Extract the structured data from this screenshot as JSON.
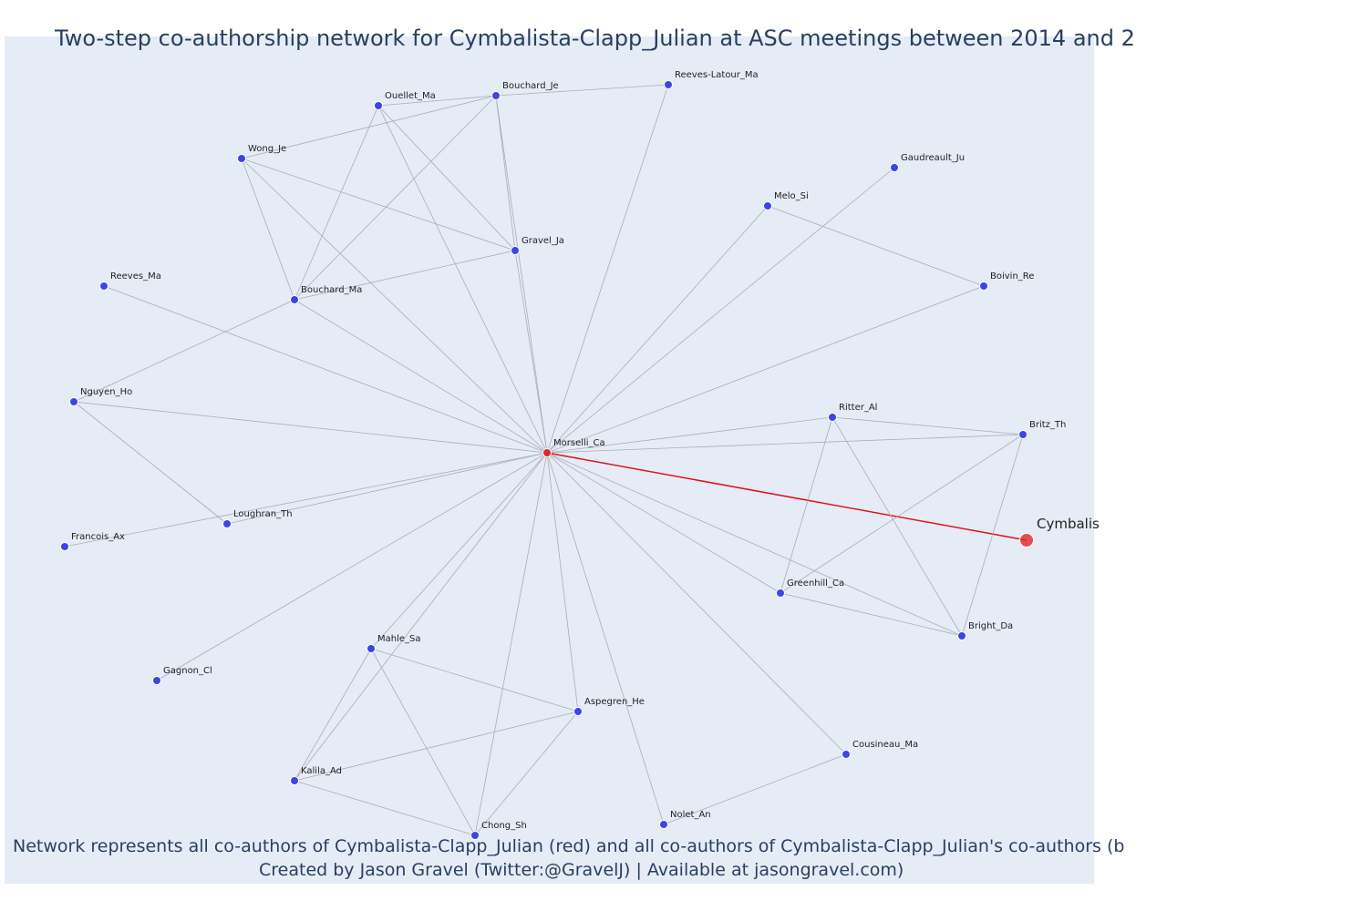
{
  "title": "Two-step co-authorship network for Cymbalista-Clapp_Julian at ASC meetings between 2014 and 2",
  "caption_line1": "Network represents all co-authors of Cymbalista-Clapp_Julian (red) and all co-authors of Cymbalista-Clapp_Julian's co-authors (b",
  "caption_line2": "Created by Jason Gravel (Twitter:@GravelJ) | Available at jasongravel.com)",
  "colors": {
    "background": "#e5ecf6",
    "node_blue": "#3d45e6",
    "node_red": "#e0282b",
    "edge_gray": "#a9acb8",
    "edge_red": "#e0141a",
    "text": "#2a3f5f"
  },
  "nodes": [
    {
      "id": "Cymbalista",
      "label": "Cymbalis",
      "type": "focal"
    },
    {
      "id": "Morselli_Ca",
      "label": "Morselli_Ca",
      "type": "coauthor"
    },
    {
      "id": "Ouellet_Ma",
      "label": "Ouellet_Ma",
      "type": "second"
    },
    {
      "id": "Bouchard_Je",
      "label": "Bouchard_Je",
      "type": "second"
    },
    {
      "id": "Reeves-Latour_Ma",
      "label": "Reeves-Latour_Ma",
      "type": "second"
    },
    {
      "id": "Wong_Je",
      "label": "Wong_Je",
      "type": "second"
    },
    {
      "id": "Gaudreault_Ju",
      "label": "Gaudreault_Ju",
      "type": "second"
    },
    {
      "id": "Melo_Si",
      "label": "Melo_Si",
      "type": "second"
    },
    {
      "id": "Gravel_Ja",
      "label": "Gravel_Ja",
      "type": "second"
    },
    {
      "id": "Reeves_Ma",
      "label": "Reeves_Ma",
      "type": "second"
    },
    {
      "id": "Bouchard_Ma",
      "label": "Bouchard_Ma",
      "type": "second"
    },
    {
      "id": "Boivin_Re",
      "label": "Boivin_Re",
      "type": "second"
    },
    {
      "id": "Nguyen_Ho",
      "label": "Nguyen_Ho",
      "type": "second"
    },
    {
      "id": "Ritter_Al",
      "label": "Ritter_Al",
      "type": "second"
    },
    {
      "id": "Britz_Th",
      "label": "Britz_Th",
      "type": "second"
    },
    {
      "id": "Loughran_Th",
      "label": "Loughran_Th",
      "type": "second"
    },
    {
      "id": "Francois_Ax",
      "label": "Francois_Ax",
      "type": "second"
    },
    {
      "id": "Greenhill_Ca",
      "label": "Greenhill_Ca",
      "type": "second"
    },
    {
      "id": "Bright_Da",
      "label": "Bright_Da",
      "type": "second"
    },
    {
      "id": "Mahle_Sa",
      "label": "Mahle_Sa",
      "type": "second"
    },
    {
      "id": "Gagnon_Cl",
      "label": "Gagnon_Cl",
      "type": "second"
    },
    {
      "id": "Aspegren_He",
      "label": "Aspegren_He",
      "type": "second"
    },
    {
      "id": "Cousineau_Ma",
      "label": "Cousineau_Ma",
      "type": "second"
    },
    {
      "id": "Kalila_Ad",
      "label": "Kalila_Ad",
      "type": "second"
    },
    {
      "id": "Chong_Sh",
      "label": "Chong_Sh",
      "type": "second"
    },
    {
      "id": "Nolet_An",
      "label": "Nolet_An",
      "type": "second"
    }
  ],
  "edges": [
    [
      "Morselli_Ca",
      "Cymbalista"
    ],
    [
      "Morselli_Ca",
      "Ouellet_Ma"
    ],
    [
      "Morselli_Ca",
      "Bouchard_Je"
    ],
    [
      "Morselli_Ca",
      "Reeves-Latour_Ma"
    ],
    [
      "Morselli_Ca",
      "Wong_Je"
    ],
    [
      "Morselli_Ca",
      "Gaudreault_Ju"
    ],
    [
      "Morselli_Ca",
      "Melo_Si"
    ],
    [
      "Morselli_Ca",
      "Gravel_Ja"
    ],
    [
      "Morselli_Ca",
      "Reeves_Ma"
    ],
    [
      "Morselli_Ca",
      "Bouchard_Ma"
    ],
    [
      "Morselli_Ca",
      "Boivin_Re"
    ],
    [
      "Morselli_Ca",
      "Nguyen_Ho"
    ],
    [
      "Morselli_Ca",
      "Ritter_Al"
    ],
    [
      "Morselli_Ca",
      "Britz_Th"
    ],
    [
      "Morselli_Ca",
      "Loughran_Th"
    ],
    [
      "Morselli_Ca",
      "Francois_Ax"
    ],
    [
      "Morselli_Ca",
      "Greenhill_Ca"
    ],
    [
      "Morselli_Ca",
      "Bright_Da"
    ],
    [
      "Morselli_Ca",
      "Mahle_Sa"
    ],
    [
      "Morselli_Ca",
      "Gagnon_Cl"
    ],
    [
      "Morselli_Ca",
      "Aspegren_He"
    ],
    [
      "Morselli_Ca",
      "Cousineau_Ma"
    ],
    [
      "Morselli_Ca",
      "Kalila_Ad"
    ],
    [
      "Morselli_Ca",
      "Chong_Sh"
    ],
    [
      "Morselli_Ca",
      "Nolet_An"
    ],
    [
      "Ouellet_Ma",
      "Bouchard_Je"
    ],
    [
      "Bouchard_Je",
      "Reeves-Latour_Ma"
    ],
    [
      "Wong_Je",
      "Bouchard_Je"
    ],
    [
      "Wong_Je",
      "Gravel_Ja"
    ],
    [
      "Wong_Je",
      "Bouchard_Ma"
    ],
    [
      "Ouellet_Ma",
      "Gravel_Ja"
    ],
    [
      "Ouellet_Ma",
      "Bouchard_Ma"
    ],
    [
      "Bouchard_Je",
      "Gravel_Ja"
    ],
    [
      "Bouchard_Je",
      "Bouchard_Ma"
    ],
    [
      "Gravel_Ja",
      "Bouchard_Ma"
    ],
    [
      "Bouchard_Ma",
      "Nguyen_Ho"
    ],
    [
      "Nguyen_Ho",
      "Loughran_Th"
    ],
    [
      "Melo_Si",
      "Boivin_Re"
    ],
    [
      "Ritter_Al",
      "Britz_Th"
    ],
    [
      "Ritter_Al",
      "Greenhill_Ca"
    ],
    [
      "Ritter_Al",
      "Bright_Da"
    ],
    [
      "Britz_Th",
      "Greenhill_Ca"
    ],
    [
      "Britz_Th",
      "Bright_Da"
    ],
    [
      "Greenhill_Ca",
      "Bright_Da"
    ],
    [
      "Mahle_Sa",
      "Aspegren_He"
    ],
    [
      "Mahle_Sa",
      "Kalila_Ad"
    ],
    [
      "Mahle_Sa",
      "Chong_Sh"
    ],
    [
      "Aspegren_He",
      "Kalila_Ad"
    ],
    [
      "Aspegren_He",
      "Chong_Sh"
    ],
    [
      "Kalila_Ad",
      "Chong_Sh"
    ],
    [
      "Cousineau_Ma",
      "Nolet_An"
    ]
  ]
}
